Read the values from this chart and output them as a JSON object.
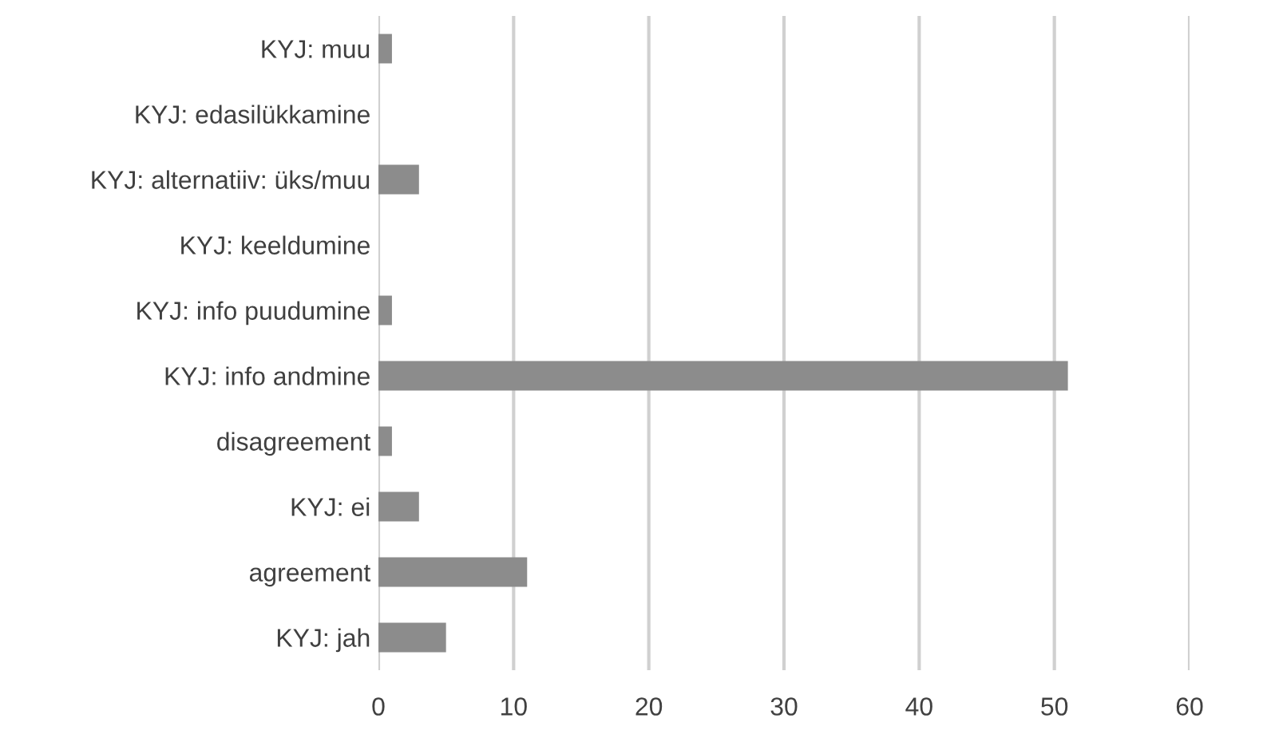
{
  "chart_data": {
    "type": "bar",
    "orientation": "horizontal",
    "categories": [
      "KYJ: muu",
      "KYJ: edasilükkamine",
      "KYJ: alternatiiv: üks/muu",
      "KYJ: keeldumine",
      "KYJ: info puudumine",
      "KYJ: info andmine",
      "disagreement",
      "KYJ: ei",
      "agreement",
      "KYJ: jah"
    ],
    "values": [
      1,
      0,
      3,
      0,
      1,
      51,
      1,
      3,
      11,
      5
    ],
    "color": "#8c8c8c",
    "xlim": [
      0,
      60
    ],
    "xticks": [
      0,
      10,
      20,
      30,
      40,
      50,
      60
    ],
    "grid": "x",
    "legend": false
  }
}
